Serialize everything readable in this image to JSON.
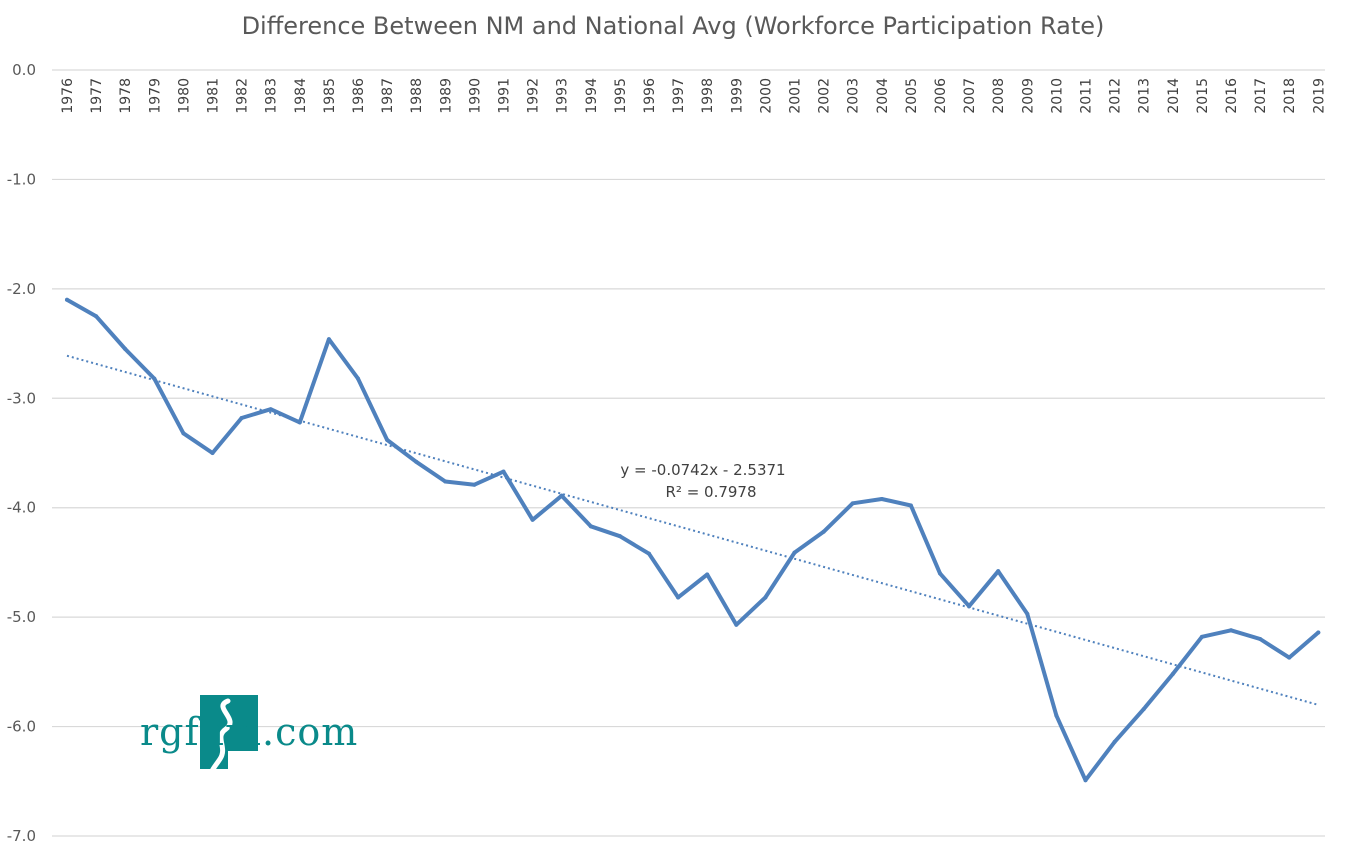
{
  "chart_data": {
    "type": "line",
    "title": "Difference Between NM and National Avg (Workforce Participation Rate)",
    "xlabel": "",
    "ylabel": "",
    "ylim": [
      -7.0,
      0.0
    ],
    "yticks": [
      "0.0",
      "-1.0",
      "-2.0",
      "-3.0",
      "-4.0",
      "-5.0",
      "-6.0",
      "-7.0"
    ],
    "grid": true,
    "categories": [
      "1976",
      "1977",
      "1978",
      "1979",
      "1980",
      "1981",
      "1982",
      "1983",
      "1984",
      "1985",
      "1986",
      "1987",
      "1988",
      "1989",
      "1990",
      "1991",
      "1992",
      "1993",
      "1994",
      "1995",
      "1996",
      "1997",
      "1998",
      "1999",
      "2000",
      "2001",
      "2002",
      "2003",
      "2004",
      "2005",
      "2006",
      "2007",
      "2008",
      "2009",
      "2010",
      "2011",
      "2012",
      "2013",
      "2014",
      "2015",
      "2016",
      "2017",
      "2018",
      "2019"
    ],
    "series": [
      {
        "values": [
          -2.1,
          -2.25,
          -2.55,
          -2.82,
          -3.32,
          -3.5,
          -3.18,
          -3.1,
          -3.22,
          -2.46,
          -2.82,
          -3.38,
          -3.58,
          -3.76,
          -3.79,
          -3.67,
          -4.11,
          -3.89,
          -4.17,
          -4.26,
          -4.42,
          -4.82,
          -4.61,
          -5.07,
          -4.82,
          -4.41,
          -4.22,
          -3.96,
          -3.92,
          -3.98,
          -4.6,
          -4.9,
          -4.58,
          -4.97,
          -5.9,
          -6.49,
          -6.14,
          -5.84,
          -5.52,
          -5.18,
          -5.12,
          -5.2,
          -5.37,
          -5.14
        ],
        "color": "#4f81bd"
      }
    ],
    "trendline": {
      "type": "linear",
      "slope": -0.0742,
      "intercept": -2.5371,
      "equation": "y = -0.0742x - 2.5371",
      "r_squared": "R² = 0.7978",
      "color": "#4f81bd"
    }
  },
  "logo": {
    "text": "rgfnm.com",
    "icon": "new-mexico-river-icon",
    "color": "#0a8a8a"
  }
}
